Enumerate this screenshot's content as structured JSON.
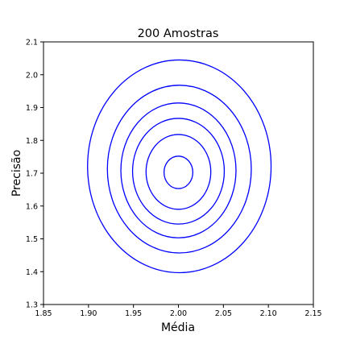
{
  "chart_data": {
    "type": "contour",
    "title": "200 Amostras",
    "xlabel": "Média",
    "ylabel": "Precisão",
    "xlim": [
      1.85,
      2.15
    ],
    "ylim": [
      1.3,
      2.1
    ],
    "xticks": [
      "1.85",
      "1.90",
      "1.95",
      "2.00",
      "2.05",
      "2.10",
      "2.15"
    ],
    "yticks": [
      "1.3",
      "1.4",
      "1.5",
      "1.6",
      "1.7",
      "1.8",
      "1.9",
      "2.0",
      "2.1"
    ],
    "grid": false,
    "line_color": "#0000ff",
    "center": {
      "x": 2.0,
      "y": 1.7
    },
    "contours": [
      {
        "x_min": 1.984,
        "x_max": 2.016,
        "y_min": 1.653,
        "y_max": 1.752
      },
      {
        "x_min": 1.964,
        "x_max": 2.036,
        "y_min": 1.59,
        "y_max": 1.818
      },
      {
        "x_min": 1.949,
        "x_max": 2.051,
        "y_min": 1.545,
        "y_max": 1.867
      },
      {
        "x_min": 1.936,
        "x_max": 2.064,
        "y_min": 1.503,
        "y_max": 1.914
      },
      {
        "x_min": 1.921,
        "x_max": 2.081,
        "y_min": 1.457,
        "y_max": 1.968
      },
      {
        "x_min": 1.899,
        "x_max": 2.103,
        "y_min": 1.397,
        "y_max": 2.045
      }
    ]
  }
}
